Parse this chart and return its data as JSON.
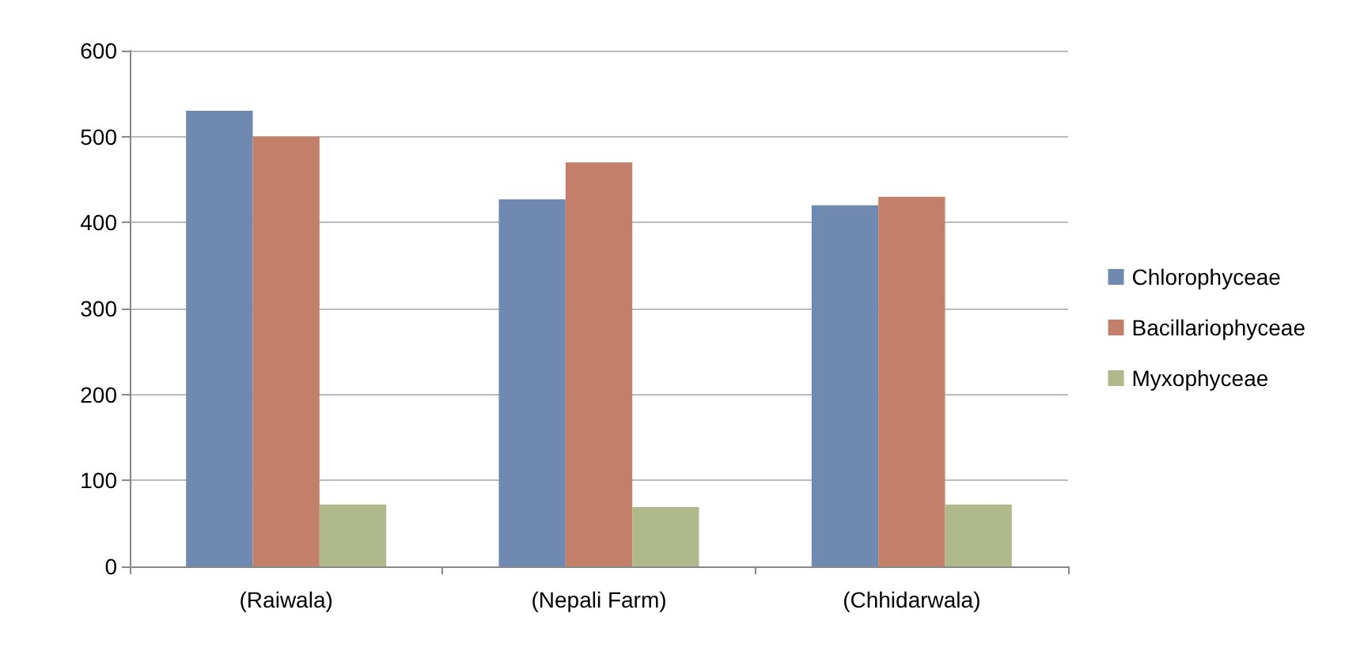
{
  "chart_data": {
    "type": "bar",
    "categories": [
      "(Raiwala)",
      "(Nepali Farm)",
      "(Chhidarwala)"
    ],
    "series": [
      {
        "name": "Chlorophyceae",
        "color": "#7089b0",
        "values": [
          530,
          427,
          420
        ]
      },
      {
        "name": "Bacillariophyceae",
        "color": "#c27f69",
        "values": [
          500,
          470,
          430
        ]
      },
      {
        "name": "Myxophyceae",
        "color": "#afb98c",
        "values": [
          72,
          69,
          72
        ]
      }
    ],
    "ylim": [
      0,
      600
    ],
    "yticks": [
      0,
      100,
      200,
      300,
      400,
      500,
      600
    ],
    "grid": "y",
    "legend": "right"
  }
}
